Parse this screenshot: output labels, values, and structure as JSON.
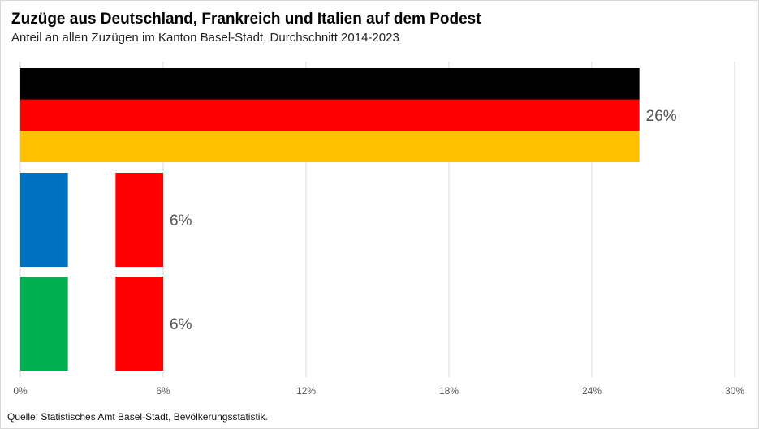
{
  "title": "Zuzüge aus Deutschland, Frankreich und Italien auf dem Podest",
  "subtitle": "Anteil an allen Zuzügen im Kanton Basel-Stadt, Durchschnitt 2014-2023",
  "source": "Quelle: Statistisches Amt Basel-Stadt, Bevölkerungsstatistik.",
  "chart_data": {
    "type": "bar",
    "orientation": "horizontal",
    "xlim": [
      0,
      30
    ],
    "xticks": [
      "0%",
      "6%",
      "12%",
      "18%",
      "24%",
      "30%"
    ],
    "xtick_values": [
      0,
      6,
      12,
      18,
      24,
      30
    ],
    "grid": true,
    "categories": [
      "Deutschland",
      "Frankreich",
      "Italien"
    ],
    "values": [
      26,
      6,
      6
    ],
    "data_labels": [
      "26%",
      "6%",
      "6%"
    ],
    "flag_colors": [
      [
        "#000000",
        "#ff0000",
        "#ffc000"
      ],
      [
        "#0070c0",
        "#ffffff",
        "#ff0000"
      ],
      [
        "#00b050",
        "#ffffff",
        "#ff0000"
      ]
    ],
    "flag_orientation": [
      "horizontal",
      "vertical",
      "vertical"
    ]
  }
}
